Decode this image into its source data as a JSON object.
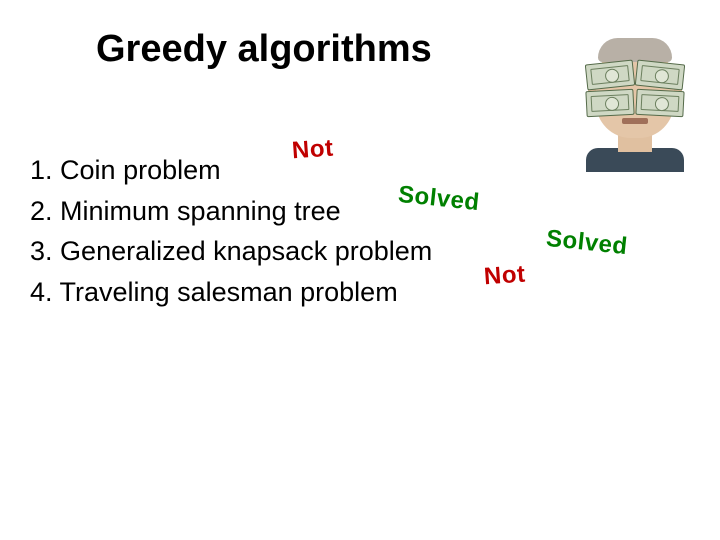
{
  "title": "Greedy algorithms",
  "items": [
    {
      "number": "1.",
      "text": "Coin problem"
    },
    {
      "number": "2.",
      "text": "Minimum spanning tree"
    },
    {
      "number": "3.",
      "text": "Generalized knapsack problem"
    },
    {
      "number": "4.",
      "text": "Traveling salesman problem"
    }
  ],
  "annotations": [
    {
      "label": "Not",
      "color": "#c00000"
    },
    {
      "label": "Solved",
      "color": "#008000"
    },
    {
      "label": "Solved",
      "color": "#008000"
    },
    {
      "label": "Not",
      "color": "#c00000"
    }
  ],
  "colors": {
    "background": "#ffffff",
    "text": "#000000"
  },
  "typography": {
    "title_fontsize": 38,
    "list_fontsize": 27,
    "annotation_fontsize": 24,
    "font_family": "Verdana"
  },
  "image": {
    "description": "man-with-dollar-bills-over-eyes",
    "skin": "#e4c6a8",
    "hair": "#b8b0a6",
    "bill_bg": "#cfd8c4",
    "bill_border": "#556b4a",
    "shirt": "#3a4a58"
  }
}
